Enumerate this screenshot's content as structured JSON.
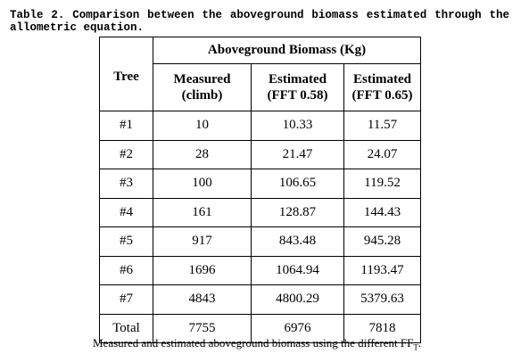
{
  "caption": "Table 2. Comparison between the aboveground biomass estimated through the allometric equation.",
  "table": {
    "tree_header": "Tree",
    "group_header": "Aboveground Biomass (Kg)",
    "col1": {
      "line1": "Measured",
      "line2": "(climb)"
    },
    "col2": {
      "line1": "Estimated",
      "line2": "(FFT 0.58)"
    },
    "col3": {
      "line1": "Estimated",
      "line2": "(FFT 0.65)"
    },
    "rows": [
      {
        "tree": "#1",
        "measured": "10",
        "ffi058": "10.33",
        "ffi065": "11.57"
      },
      {
        "tree": "#2",
        "measured": "28",
        "ffi058": "21.47",
        "ffi065": "24.07"
      },
      {
        "tree": "#3",
        "measured": "100",
        "ffi058": "106.65",
        "ffi065": "119.52"
      },
      {
        "tree": "#4",
        "measured": "161",
        "ffi058": "128.87",
        "ffi065": "144.43"
      },
      {
        "tree": "#5",
        "measured": "917",
        "ffi058": "843.48",
        "ffi065": "945.28"
      },
      {
        "tree": "#6",
        "measured": "1696",
        "ffi058": "1064.94",
        "ffi065": "1193.47"
      },
      {
        "tree": "#7",
        "measured": "4843",
        "ffi058": "4800.29",
        "ffi065": "5379.63"
      },
      {
        "tree": "Total",
        "measured": "7755",
        "ffi058": "6976",
        "ffi065": "7818"
      }
    ]
  },
  "footnote": {
    "text": "Measured and estimated aboveground biomass using the different FF",
    "sub": "T",
    "end": "."
  }
}
